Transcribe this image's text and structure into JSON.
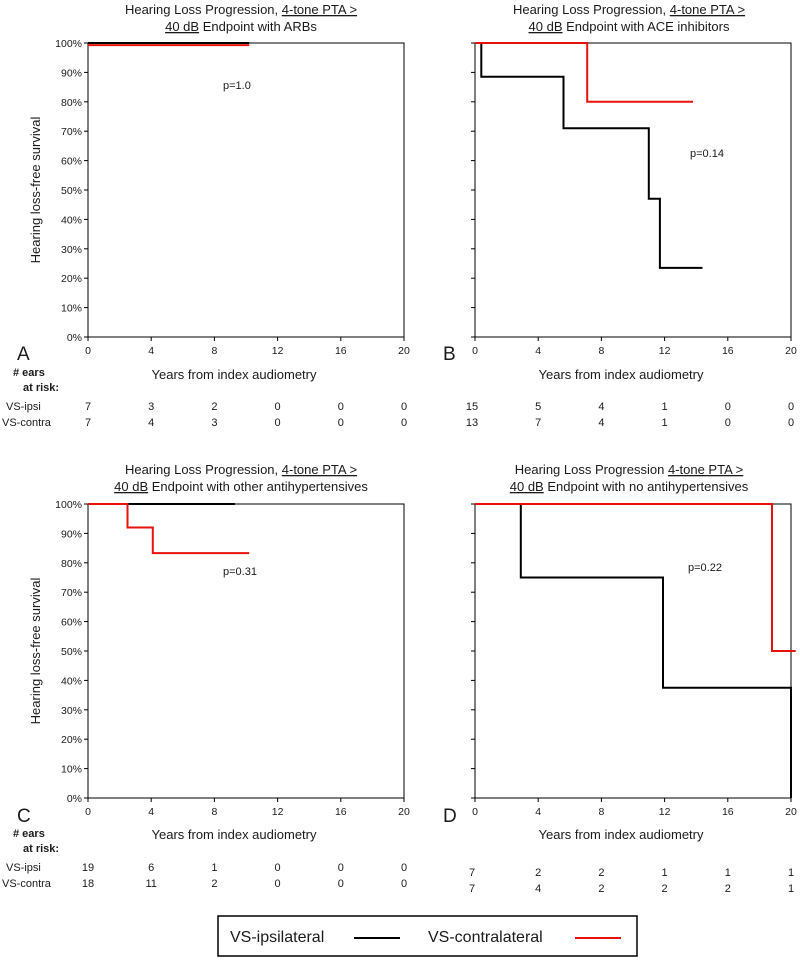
{
  "legend": {
    "ipsi_label": "VS-ipsilateral",
    "contra_label": "VS-contralateral",
    "ipsi_color": "#000000",
    "contra_color": "#e8120c"
  },
  "risk_table_labels": {
    "header_line1": "# ears",
    "header_line2": "at risk:",
    "ipsi": "VS-ipsi",
    "contra": "VS-contra"
  },
  "chart_data": [
    {
      "type": "line",
      "panel_letter": "A",
      "title_line1_plain": "Hearing Loss Progression, ",
      "title_line1_underlined": "4-tone PTA >",
      "title_line2_underlined": "40 dB",
      "title_line2_plain": " Endpoint with ARBs",
      "xlabel": "Years from index audiometry",
      "ylabel": "Hearing loss-free survival",
      "xlim": [
        0,
        20
      ],
      "ylim": [
        0,
        100
      ],
      "xticks": [
        "0",
        "4",
        "8",
        "12",
        "16",
        "20"
      ],
      "yticks": [
        "0%",
        "10%",
        "20%",
        "30%",
        "40%",
        "50%",
        "60%",
        "70%",
        "80%",
        "90%",
        "100%"
      ],
      "annotation": "p=1.0",
      "series": [
        {
          "name": "VS-ipsilateral",
          "x": [
            0,
            10.2
          ],
          "y": [
            100,
            100
          ]
        },
        {
          "name": "VS-contralateral",
          "x": [
            0,
            10.2
          ],
          "y": [
            99.3,
            99.3
          ]
        }
      ],
      "at_risk": {
        "ipsi": [
          "7",
          "3",
          "2",
          "0",
          "0",
          "0"
        ],
        "contra": [
          "7",
          "4",
          "3",
          "0",
          "0",
          "0"
        ]
      }
    },
    {
      "type": "line",
      "panel_letter": "B",
      "title_line1_plain": "Hearing Loss Progression, ",
      "title_line1_underlined": "4-tone PTA >",
      "title_line2_underlined": "40 dB",
      "title_line2_plain": " Endpoint with ACE inhibitors",
      "xlabel": "Years from index audiometry",
      "ylabel": "",
      "xlim": [
        0,
        20
      ],
      "ylim": [
        0,
        100
      ],
      "xticks": [
        "0",
        "4",
        "8",
        "12",
        "16",
        "20"
      ],
      "yticks": [],
      "annotation": "p=0.14",
      "series": [
        {
          "name": "VS-ipsilateral",
          "x": [
            0,
            0.4,
            0.4,
            5.6,
            5.6,
            11.0,
            11.0,
            11.7,
            11.7,
            14.4
          ],
          "y": [
            100,
            100,
            88.5,
            88.5,
            71,
            71,
            47,
            47,
            23.5,
            23.5
          ]
        },
        {
          "name": "VS-contralateral",
          "x": [
            0,
            7.1,
            7.1,
            13.8
          ],
          "y": [
            100,
            100,
            80,
            80
          ]
        }
      ],
      "at_risk": {
        "ipsi": [
          "15",
          "5",
          "4",
          "1",
          "0",
          "0"
        ],
        "contra": [
          "13",
          "7",
          "4",
          "1",
          "0",
          "0"
        ]
      }
    },
    {
      "type": "line",
      "panel_letter": "C",
      "title_line1_plain": "Hearing Loss Progression, ",
      "title_line1_underlined": "4-tone PTA >",
      "title_line2_underlined": "40 dB",
      "title_line2_plain": " Endpoint with other antihypertensives",
      "xlabel": "Years from index audiometry",
      "ylabel": "Hearing loss-free survival",
      "xlim": [
        0,
        20
      ],
      "ylim": [
        0,
        100
      ],
      "xticks": [
        "0",
        "4",
        "8",
        "12",
        "16",
        "20"
      ],
      "yticks": [
        "0%",
        "10%",
        "20%",
        "30%",
        "40%",
        "50%",
        "60%",
        "70%",
        "80%",
        "90%",
        "100%"
      ],
      "annotation": "p=0.31",
      "series": [
        {
          "name": "VS-ipsilateral",
          "x": [
            0,
            9.3
          ],
          "y": [
            100,
            100
          ]
        },
        {
          "name": "VS-contralateral",
          "x": [
            0,
            2.5,
            2.5,
            4.1,
            4.1,
            10.2
          ],
          "y": [
            100,
            100,
            92,
            92,
            83.3,
            83.3
          ]
        }
      ],
      "at_risk": {
        "ipsi": [
          "19",
          "6",
          "1",
          "0",
          "0",
          "0"
        ],
        "contra": [
          "18",
          "11",
          "2",
          "0",
          "0",
          "0"
        ]
      }
    },
    {
      "type": "line",
      "panel_letter": "D",
      "title_line1_plain": "Hearing Loss Progression ",
      "title_line1_underlined": "4-tone PTA >",
      "title_line2_underlined": "40 dB",
      "title_line2_plain": " Endpoint with no antihypertensives",
      "xlabel": "Years from index audiometry",
      "ylabel": "",
      "xlim": [
        0,
        20
      ],
      "ylim": [
        0,
        100
      ],
      "xticks": [
        "0",
        "4",
        "8",
        "12",
        "16",
        "20"
      ],
      "yticks": [],
      "annotation": "p=0.22",
      "series": [
        {
          "name": "VS-ipsilateral",
          "x": [
            0,
            2.9,
            2.9,
            11.9,
            11.9,
            20.0,
            20.0
          ],
          "y": [
            100,
            100,
            75,
            75,
            37.5,
            37.5,
            0
          ]
        },
        {
          "name": "VS-contralateral",
          "x": [
            0,
            18.8,
            18.8,
            20.3
          ],
          "y": [
            100,
            100,
            50,
            50
          ]
        }
      ],
      "at_risk": {
        "ipsi": [
          "7",
          "2",
          "2",
          "1",
          "1",
          "1"
        ],
        "contra": [
          "7",
          "4",
          "2",
          "2",
          "2",
          "1"
        ]
      }
    }
  ]
}
